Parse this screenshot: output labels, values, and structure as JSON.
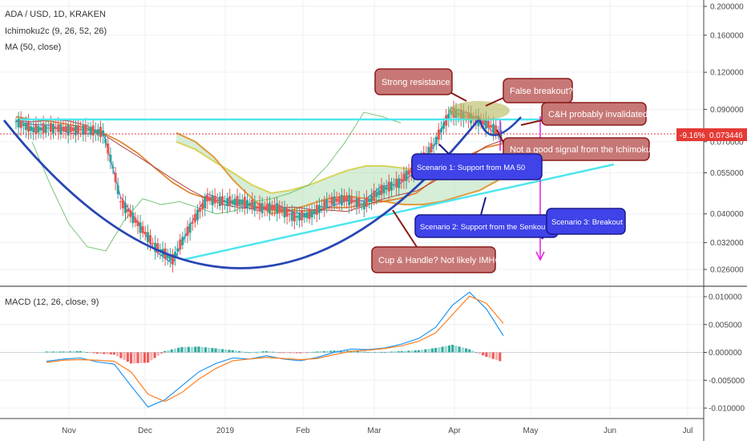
{
  "header": {
    "symbol": "ADA / USD, 1D, KRAKEN",
    "ichimoku": "Ichimoku2c (9, 26, 52, 26)",
    "ma": "MA (50, close)",
    "macd": "MACD (12, 26, close, 9)"
  },
  "price_tag": {
    "change": "-9.16%",
    "price": "0.073446"
  },
  "notes": [
    {
      "id": "strong-resistance",
      "text": "Strong resistance",
      "kind": "red"
    },
    {
      "id": "false-breakout",
      "text": "False breakout?",
      "kind": "red"
    },
    {
      "id": "ch-invalidated",
      "text": "C&H probably invalidated",
      "kind": "red"
    },
    {
      "id": "ichimoku-signal",
      "text": "Not a good signal from the Ichimoku",
      "kind": "red"
    },
    {
      "id": "cup-handle",
      "text": "Cup & Handle? Not likely IMHO",
      "kind": "red"
    },
    {
      "id": "scenario-1",
      "text": "Scenario 1: Support from MA 50",
      "kind": "blue"
    },
    {
      "id": "scenario-2",
      "text": "Scenario 2: Support from the Senkou spans",
      "kind": "blue"
    },
    {
      "id": "scenario-3",
      "text": "Scenario 3: Breakout",
      "kind": "blue"
    }
  ],
  "colors": {
    "up": "#26a69a",
    "down": "#ef5350",
    "cloud_up": "#a5d6a7",
    "cloud_down": "#ffcc80",
    "ma50": "#e07b24",
    "tenkan": "#4a5bd6",
    "kijun": "#b0413e",
    "chikou": "#6abf69",
    "span_a": "#d7d35a",
    "span_b": "#e09a3c",
    "cyan": "#4ee6ee",
    "cup": "#2846b4",
    "macd_line": "#2196f3",
    "signal_line": "#ff7f24",
    "note_red": "#c0696b",
    "note_blue": "#3d3ff0",
    "magenta": "#e020e0"
  },
  "chart_data": [
    {
      "type": "line",
      "title": "ADA / USD, 1D, KRAKEN",
      "x_ticks": [
        "Nov",
        "Dec",
        "2019",
        "Feb",
        "Mar",
        "Apr",
        "May",
        "Jun",
        "Jul"
      ],
      "y_ticks": [
        "0.200000",
        "0.160000",
        "0.120000",
        "0.090000",
        "0.070000",
        "0.055000",
        "0.040000",
        "0.032000",
        "0.026000"
      ],
      "ylim": [
        0.024,
        0.2
      ],
      "scale": "log",
      "price_ohlc_approx": {
        "dates": [
          "Oct 8",
          "Oct 15",
          "Oct 22",
          "Oct 29",
          "Nov 5",
          "Nov 12",
          "Nov 19",
          "Nov 26",
          "Dec 3",
          "Dec 10",
          "Dec 17",
          "Dec 24",
          "Dec 31",
          "Jan 7",
          "Jan 14",
          "Jan 21",
          "Jan 28",
          "Feb 4",
          "Feb 11",
          "Feb 18",
          "Feb 25",
          "Mar 4",
          "Mar 11",
          "Mar 18",
          "Mar 25",
          "Apr 1",
          "Apr 8",
          "Apr 15",
          "Apr 22"
        ],
        "close": [
          0.082,
          0.077,
          0.078,
          0.077,
          0.077,
          0.075,
          0.044,
          0.037,
          0.031,
          0.028,
          0.036,
          0.045,
          0.044,
          0.044,
          0.042,
          0.042,
          0.039,
          0.04,
          0.044,
          0.045,
          0.043,
          0.048,
          0.051,
          0.058,
          0.068,
          0.088,
          0.085,
          0.081,
          0.0734
        ]
      },
      "ma50_approx": [
        0.085,
        0.083,
        0.082,
        0.08,
        0.078,
        0.075,
        0.07,
        0.064,
        0.057,
        0.051,
        0.047,
        0.045,
        0.044,
        0.043,
        0.042,
        0.041,
        0.041,
        0.041,
        0.042,
        0.042,
        0.043,
        0.044,
        0.045,
        0.047,
        0.052,
        0.058,
        0.063,
        0.067,
        0.069
      ]
    },
    {
      "type": "bar",
      "title": "MACD (12, 26, close, 9)",
      "y_ticks": [
        "0.010000",
        "0.005000",
        "0.000000",
        "-0.005000",
        "-0.010000"
      ],
      "ylim": [
        -0.011,
        0.011
      ],
      "series": [
        {
          "name": "MACD",
          "values": [
            -0.0016,
            -0.0012,
            -0.001,
            -0.0017,
            -0.0021,
            -0.006,
            -0.0098,
            -0.0085,
            -0.006,
            -0.0035,
            -0.002,
            -0.001,
            -0.0012,
            -0.0006,
            -0.0012,
            -0.0015,
            -0.0009,
            0.0,
            0.0006,
            0.0005,
            0.0008,
            0.0015,
            0.0025,
            0.0045,
            0.0085,
            0.0108,
            0.0078,
            0.003
          ]
        },
        {
          "name": "Signal",
          "values": [
            -0.0018,
            -0.0014,
            -0.0013,
            -0.0014,
            -0.0016,
            -0.0035,
            -0.0075,
            -0.0088,
            -0.0072,
            -0.0048,
            -0.0029,
            -0.0015,
            -0.0012,
            -0.0009,
            -0.0011,
            -0.0013,
            -0.0011,
            -0.0004,
            0.0002,
            0.0004,
            0.0007,
            0.0012,
            0.002,
            0.0035,
            0.0068,
            0.0101,
            0.0088,
            0.0052
          ]
        }
      ]
    }
  ]
}
